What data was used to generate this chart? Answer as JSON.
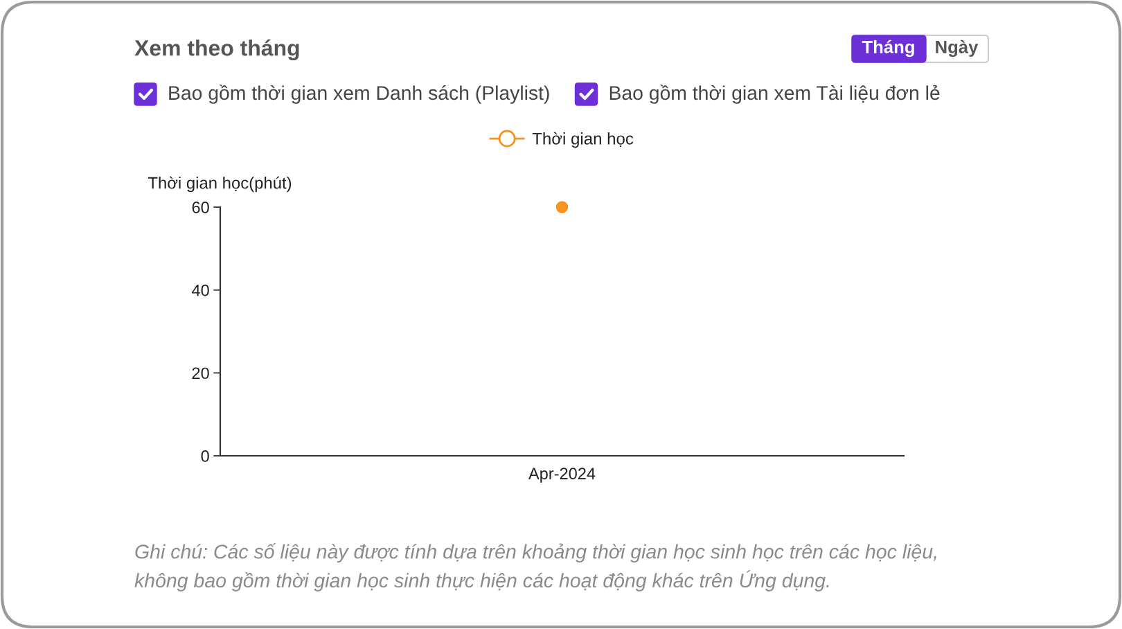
{
  "chart_data": {
    "type": "line",
    "title": "Xem theo tháng",
    "ylabel": "Thời gian học(phút)",
    "categories": [
      "Apr-2024"
    ],
    "series": [
      {
        "name": "Thời gian học",
        "color": "#f7931e",
        "values": [
          60
        ]
      }
    ],
    "ylim": [
      0,
      60
    ],
    "yticks": [
      0,
      20,
      40,
      60
    ],
    "legend": "top",
    "marker": "circle",
    "line_style": "solid",
    "annotations": [
      "Tháng",
      "Ngày",
      "Bao gồm thời gian xem Danh sách (Playlist)",
      "Bao gồm thời gian xem Tài liệu đơn lẻ",
      "Ghi chú: Các số liệu này được tính dựa trên khoảng thời gian học sinh học trên các học liệu,\nkhông bao gồm thời gian học sinh thực hiện các hoạt động khác trên Ứng dụng."
    ]
  }
}
